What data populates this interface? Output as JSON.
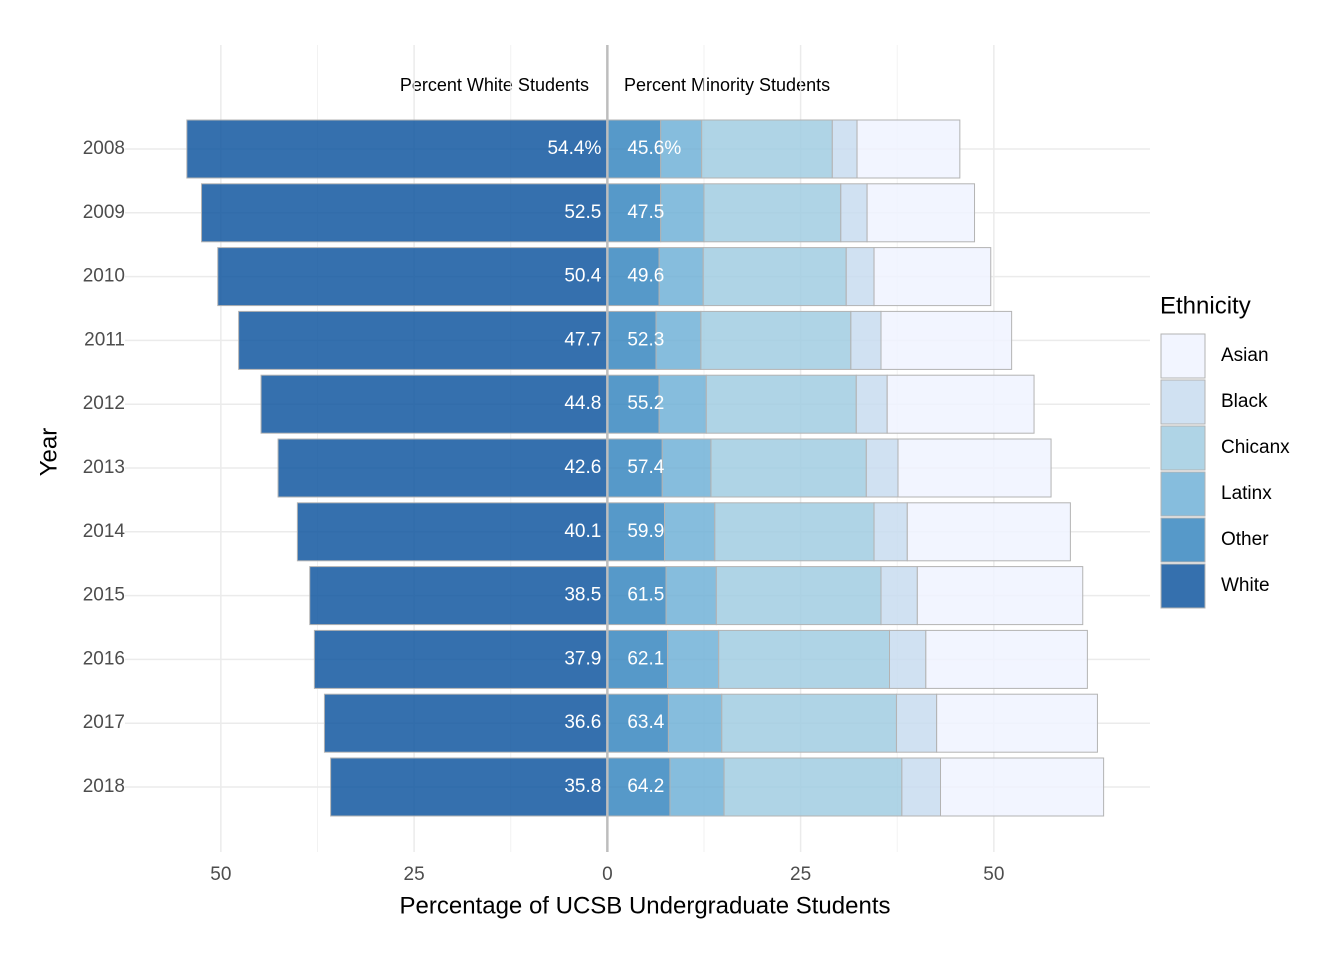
{
  "chart_data": {
    "type": "diverging_bar",
    "annotations": [
      "Percent White Students",
      "Percent Minority Students"
    ],
    "x_label": "Percentage of UCSB Undergraduate Students",
    "y_label": "Year",
    "legend_title": "Ethnicity",
    "categories": [
      "2008",
      "2009",
      "2010",
      "2011",
      "2012",
      "2013",
      "2014",
      "2015",
      "2016",
      "2017",
      "2018"
    ],
    "series": [
      {
        "name": "Asian",
        "color": "#eff3ff",
        "values": [
          13.3,
          13.9,
          15.1,
          16.9,
          19.0,
          19.8,
          21.1,
          21.4,
          20.9,
          20.8,
          21.1
        ]
      },
      {
        "name": "Black",
        "color": "#c6dbef",
        "values": [
          3.2,
          3.4,
          3.6,
          3.9,
          4.0,
          4.1,
          4.3,
          4.7,
          4.7,
          5.2,
          5.0
        ]
      },
      {
        "name": "Chicanx",
        "color": "#9ecae1",
        "values": [
          16.9,
          17.7,
          18.5,
          19.4,
          19.4,
          20.1,
          20.6,
          21.3,
          22.1,
          22.6,
          23.0
        ]
      },
      {
        "name": "Latinx",
        "color": "#6baed6",
        "values": [
          5.3,
          5.6,
          5.7,
          5.8,
          6.1,
          6.3,
          6.5,
          6.5,
          6.6,
          6.9,
          7.0
        ]
      },
      {
        "name": "Other",
        "color": "#3182bd",
        "values": [
          6.9,
          6.9,
          6.7,
          6.3,
          6.7,
          7.1,
          7.4,
          7.6,
          7.8,
          7.9,
          8.1
        ]
      },
      {
        "name": "White",
        "color": "#08519c",
        "values": [
          54.4,
          52.5,
          50.4,
          47.7,
          44.8,
          42.6,
          40.1,
          38.5,
          37.9,
          36.6,
          35.8
        ],
        "value_labels": [
          "54.4%",
          "52.5",
          "50.4",
          "47.7",
          "44.8",
          "42.6",
          "40.1",
          "38.5",
          "37.9",
          "36.6",
          "35.8"
        ]
      }
    ],
    "minority_totals": [
      45.6,
      47.5,
      49.6,
      52.3,
      55.2,
      57.4,
      59.9,
      61.5,
      62.1,
      63.4,
      64.2
    ],
    "minority_total_labels": [
      "45.6%",
      "47.5",
      "49.6",
      "52.3",
      "55.2",
      "57.4",
      "59.9",
      "61.5",
      "62.1",
      "63.4",
      "64.2"
    ],
    "xlim": [
      -62.4,
      70.2
    ],
    "xticks": [
      {
        "value": -50,
        "label": "50"
      },
      {
        "value": -25,
        "label": "25"
      },
      0,
      25,
      50
    ],
    "grid": true
  }
}
